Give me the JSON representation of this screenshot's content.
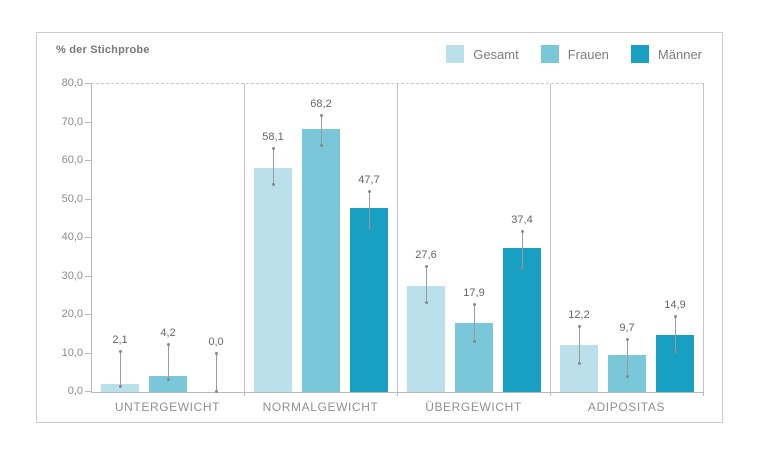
{
  "chart_data": {
    "type": "bar",
    "title": "% der Stichprobe",
    "ylabel": "% der Stichprobe",
    "xlabel": "",
    "ylim": [
      0,
      80
    ],
    "yticks": [
      {
        "value": 80,
        "label": "80,0"
      },
      {
        "value": 70,
        "label": "70,0"
      },
      {
        "value": 60,
        "label": "60,0"
      },
      {
        "value": 50,
        "label": "50,0"
      },
      {
        "value": 40,
        "label": "40,0"
      },
      {
        "value": 30,
        "label": "30,0"
      },
      {
        "value": 20,
        "label": "20,0"
      },
      {
        "value": 10,
        "label": "10,0"
      },
      {
        "value": 0,
        "label": "0,0"
      }
    ],
    "grid": "dashed horizontal line at 80 only, vertical separators between category panels",
    "legend_position": "top-right",
    "error_bars": "confidence interval lines with round dots at both ends",
    "categories": [
      "UNTERGEWICHT",
      "NORMALGEWICHT",
      "ÜBERGEWICHT",
      "ADIPOSITAS"
    ],
    "series": [
      {
        "name": "Gesamt",
        "color": "#bae0eb",
        "values": [
          2.1,
          58.1,
          27.6,
          12.2
        ],
        "labels": [
          "2,1",
          "58,1",
          "27,6",
          "12,2"
        ],
        "ci_low": [
          1.3,
          53.7,
          23.0,
          7.4
        ],
        "ci_high": [
          10.4,
          63.0,
          32.5,
          16.9
        ]
      },
      {
        "name": "Frauen",
        "color": "#7ac7d9",
        "values": [
          4.2,
          68.2,
          17.9,
          9.7
        ],
        "labels": [
          "4,2",
          "68,2",
          "17,9",
          "9,7"
        ],
        "ci_low": [
          3.0,
          64.0,
          13.1,
          4.0
        ],
        "ci_high": [
          12.2,
          71.7,
          22.6,
          13.5
        ]
      },
      {
        "name": "Männer",
        "color": "#18a0c2",
        "values": [
          0.0,
          47.7,
          37.4,
          14.9
        ],
        "labels": [
          "0,0",
          "47,7",
          "37,4",
          "14,9"
        ],
        "ci_low": [
          0.0,
          42.4,
          32.0,
          10.4
        ],
        "ci_high": [
          9.9,
          52.0,
          41.6,
          19.5
        ]
      }
    ]
  },
  "colors": {
    "frame_border": "#c9cdce",
    "axis_line": "#b6babb",
    "error_bar": "#9b9b9b",
    "tick_text": "#8a8a8a",
    "value_text": "#666666"
  }
}
